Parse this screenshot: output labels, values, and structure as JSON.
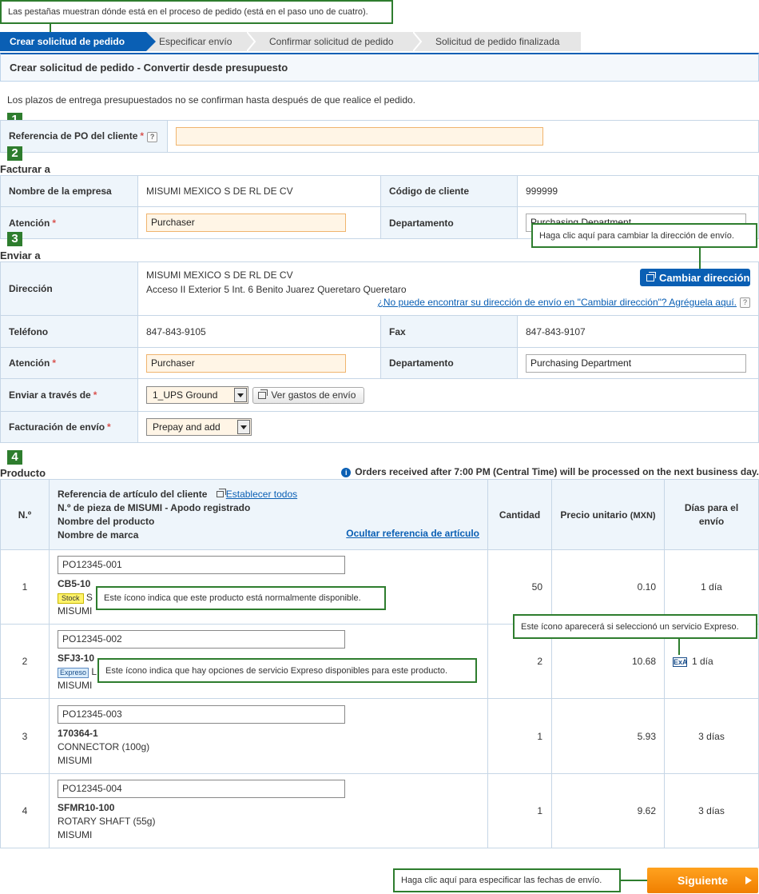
{
  "callouts": {
    "tabs": "Las pestañas muestran dónde está en el proceso de pedido (está en el paso uno de cuatro).",
    "change_address": "Haga clic aquí para cambiar la dirección de envío.",
    "stock": "Este ícono indica que este producto está normalmente disponible.",
    "express_selected": "Este ícono aparecerá si seleccionó un servicio Expreso.",
    "express_options": "Este ícono indica que hay opciones de servicio Expreso disponibles para este producto.",
    "next": "Haga clic aquí para especificar las fechas de envío."
  },
  "steps": [
    "Crear solicitud de pedido",
    "Especificar envío",
    "Confirmar solicitud de pedido",
    "Solicitud de pedido finalizada"
  ],
  "title": "Crear solicitud de pedido - Convertir desde presupuesto",
  "note": "Los plazos de entrega presupuestados no se confirman hasta después de que realice el pedido.",
  "section_numbers": [
    "1",
    "2",
    "3",
    "4"
  ],
  "po": {
    "label": "Referencia de PO del cliente",
    "required": "*",
    "help": "?",
    "value": ""
  },
  "billing": {
    "heading": "Facturar a",
    "company_label": "Nombre de la empresa",
    "company_value": "MISUMI MEXICO S DE RL DE CV",
    "customer_code_label": "Código de cliente",
    "customer_code_value": "999999",
    "attention_label": "Atención",
    "attention_value": "Purchaser",
    "department_label": "Departamento",
    "department_value": "Purchasing Department"
  },
  "shipping": {
    "heading": "Enviar a",
    "address_label": "Dirección",
    "address_line1": "MISUMI MEXICO S DE RL DE CV",
    "address_line2": "Acceso II Exterior 5 Int. 6 Benito Juarez Queretaro Queretaro",
    "change_address_button": "Cambiar dirección",
    "add_address_link": "¿No puede encontrar su dirección de envío en \"Cambiar dirección\"? Agréguela aquí.",
    "phone_label": "Teléfono",
    "phone_value": "847-843-9105",
    "fax_label": "Fax",
    "fax_value": "847-843-9107",
    "attention_label": "Atención",
    "attention_value": "Purchaser",
    "department_label": "Departamento",
    "department_value": "Purchasing Department",
    "ship_via_label": "Enviar a través de",
    "ship_via_value": "1_UPS Ground",
    "shipping_cost_button": "Ver gastos de envío",
    "billing_label": "Facturación de envío",
    "billing_value": "Prepay and add"
  },
  "product": {
    "heading": "Producto",
    "notice": "Orders received after 7:00 PM (Central Time) will be processed on the next business day.",
    "col_no": "N.º",
    "col_ref_line1": "Referencia de artículo del cliente",
    "set_all_link": "Establecer todos",
    "col_ref_line2": "N.º de pieza de MISUMI - Apodo registrado",
    "col_ref_line3": "Nombre del producto",
    "col_ref_line4": "Nombre de marca",
    "hide_ref_link": "Ocultar referencia de artículo",
    "col_qty": "Cantidad",
    "col_price": "Precio unitario",
    "col_price_unit": "(MXN)",
    "col_days": "Días para el envío",
    "stock_badge": "Stock",
    "express_badge": "Expreso",
    "express_icon": "ExA",
    "rows": [
      {
        "no": "1",
        "ref": "PO12345-001",
        "part": "CB5-10",
        "name_visible": "S",
        "brand": "MISUMI",
        "qty": "50",
        "price": "0.10",
        "days": "1 día"
      },
      {
        "no": "2",
        "ref": "PO12345-002",
        "part": "SFJ3-10",
        "name_visible": "LI",
        "brand": "MISUMI",
        "qty": "2",
        "price": "10.68",
        "days": "1 día"
      },
      {
        "no": "3",
        "ref": "PO12345-003",
        "part": "170364-1",
        "name": "CONNECTOR (100g)",
        "brand": "MISUMI",
        "qty": "1",
        "price": "5.93",
        "days": "3 días"
      },
      {
        "no": "4",
        "ref": "PO12345-004",
        "part": "SFMR10-100",
        "name": "ROTARY SHAFT (55g)",
        "brand": "MISUMI",
        "qty": "1",
        "price": "9.62",
        "days": "3 días"
      }
    ]
  },
  "next_button": "Siguiente",
  "colors": {
    "primary": "#0a5fb4",
    "callout": "#2e7d2e",
    "next": "#f58a07"
  }
}
